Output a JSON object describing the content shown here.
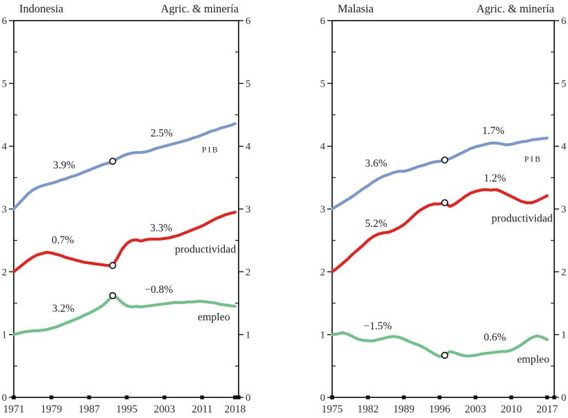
{
  "axis_color": "#111111",
  "marker_style": {
    "fill": "#ffffff",
    "stroke": "#111111"
  },
  "chart_data": [
    {
      "type": "line",
      "country": "Indonesia",
      "sector": "Agric. & minería",
      "ylim": [
        0,
        6
      ],
      "y_ticks": [
        0,
        1,
        2,
        3,
        4,
        5,
        6
      ],
      "y_minor_step": 0.5,
      "x_ticks": [
        1971,
        1979,
        1987,
        1995,
        2003,
        2011,
        2018
      ],
      "x_range": [
        1971,
        2018.75
      ],
      "x_start": 1971,
      "x_step": 1,
      "break_year": 1992,
      "series": [
        {
          "name": "PIB",
          "color": "#7b98cc",
          "marker_value": 3.76,
          "values": [
            3.0,
            3.08,
            3.16,
            3.24,
            3.3,
            3.34,
            3.37,
            3.39,
            3.41,
            3.43,
            3.46,
            3.48,
            3.51,
            3.53,
            3.56,
            3.59,
            3.62,
            3.65,
            3.68,
            3.71,
            3.73,
            3.76,
            3.8,
            3.84,
            3.87,
            3.89,
            3.9,
            3.9,
            3.91,
            3.93,
            3.96,
            3.98,
            4.0,
            4.02,
            4.04,
            4.06,
            4.08,
            4.1,
            4.13,
            4.15,
            4.18,
            4.21,
            4.24,
            4.26,
            4.29,
            4.31,
            4.33,
            4.36
          ]
        },
        {
          "name": "productividad",
          "color": "#e8211d",
          "marker_value": 2.1,
          "values": [
            2.0,
            2.06,
            2.12,
            2.18,
            2.23,
            2.27,
            2.29,
            2.31,
            2.3,
            2.28,
            2.26,
            2.23,
            2.21,
            2.19,
            2.17,
            2.15,
            2.14,
            2.13,
            2.12,
            2.11,
            2.1,
            2.1,
            2.22,
            2.36,
            2.45,
            2.5,
            2.51,
            2.49,
            2.51,
            2.52,
            2.52,
            2.52,
            2.53,
            2.54,
            2.56,
            2.58,
            2.61,
            2.64,
            2.67,
            2.7,
            2.73,
            2.77,
            2.81,
            2.85,
            2.88,
            2.91,
            2.93,
            2.95
          ]
        },
        {
          "name": "empleo",
          "color": "#70c189",
          "marker_value": 1.62,
          "values": [
            1.0,
            1.02,
            1.04,
            1.05,
            1.06,
            1.06,
            1.07,
            1.08,
            1.1,
            1.12,
            1.15,
            1.18,
            1.21,
            1.24,
            1.27,
            1.31,
            1.34,
            1.38,
            1.42,
            1.47,
            1.54,
            1.62,
            1.58,
            1.51,
            1.46,
            1.44,
            1.45,
            1.44,
            1.45,
            1.46,
            1.47,
            1.48,
            1.49,
            1.5,
            1.51,
            1.51,
            1.51,
            1.52,
            1.52,
            1.53,
            1.53,
            1.52,
            1.51,
            1.5,
            1.48,
            1.47,
            1.46,
            1.45
          ]
        }
      ],
      "annotations": [
        {
          "text": "3.9%",
          "year": 1981.7,
          "value": 3.7
        },
        {
          "text": "2.5%",
          "year": 2002.4,
          "value": 4.21
        },
        {
          "text": "PIB",
          "year": 2012.8,
          "value": 3.96,
          "kind": "series-label",
          "small_caps": true
        },
        {
          "text": "0.7%",
          "year": 1981.4,
          "value": 2.51
        },
        {
          "text": "3.3%",
          "year": 2002.3,
          "value": 2.7
        },
        {
          "text": "productividad",
          "year": 2018.2,
          "value": 2.36,
          "anchor": "end",
          "kind": "series-label"
        },
        {
          "text": "3.2%",
          "year": 1981.5,
          "value": 1.42
        },
        {
          "text": "−0.8%",
          "year": 2001.8,
          "value": 1.72
        },
        {
          "text": "empleo",
          "year": 2013.5,
          "value": 1.28,
          "kind": "series-label"
        }
      ]
    },
    {
      "type": "line",
      "country": "Malasia",
      "sector": "Agric. & minería",
      "ylim": [
        0,
        6
      ],
      "y_ticks": [
        0,
        1,
        2,
        3,
        4,
        5,
        6
      ],
      "y_minor_step": 0.5,
      "x_ticks": [
        1975,
        1982,
        1989,
        1996,
        2003,
        2010,
        2017
      ],
      "x_range": [
        1975,
        2018.4
      ],
      "x_start": 1975,
      "x_step": 1,
      "break_year": 1997,
      "series": [
        {
          "name": "PIB",
          "color": "#7b98cc",
          "marker_value": 3.78,
          "values": [
            3.0,
            3.05,
            3.1,
            3.15,
            3.2,
            3.26,
            3.32,
            3.37,
            3.43,
            3.48,
            3.52,
            3.55,
            3.58,
            3.6,
            3.6,
            3.62,
            3.65,
            3.68,
            3.7,
            3.73,
            3.75,
            3.76,
            3.78,
            3.8,
            3.84,
            3.88,
            3.92,
            3.96,
            3.99,
            4.01,
            4.03,
            4.05,
            4.05,
            4.04,
            4.02,
            4.03,
            4.05,
            4.07,
            4.08,
            4.1,
            4.11,
            4.12,
            4.13
          ]
        },
        {
          "name": "productividad",
          "color": "#e8211d",
          "marker_value": 3.1,
          "values": [
            2.0,
            2.06,
            2.13,
            2.2,
            2.28,
            2.35,
            2.42,
            2.5,
            2.56,
            2.6,
            2.62,
            2.63,
            2.66,
            2.7,
            2.75,
            2.82,
            2.9,
            2.97,
            3.02,
            3.06,
            3.08,
            3.08,
            3.1,
            3.04,
            3.08,
            3.14,
            3.2,
            3.25,
            3.28,
            3.3,
            3.31,
            3.3,
            3.31,
            3.28,
            3.24,
            3.2,
            3.16,
            3.12,
            3.1,
            3.1,
            3.13,
            3.17,
            3.21
          ]
        },
        {
          "name": "empleo",
          "color": "#70c189",
          "marker_value": 0.67,
          "values": [
            1.0,
            1.01,
            1.03,
            1.01,
            0.97,
            0.93,
            0.91,
            0.9,
            0.9,
            0.92,
            0.94,
            0.96,
            0.97,
            0.96,
            0.93,
            0.89,
            0.86,
            0.83,
            0.79,
            0.74,
            0.69,
            0.65,
            0.67,
            0.73,
            0.71,
            0.68,
            0.66,
            0.66,
            0.67,
            0.69,
            0.7,
            0.71,
            0.72,
            0.73,
            0.73,
            0.75,
            0.79,
            0.84,
            0.9,
            0.95,
            0.98,
            0.96,
            0.92
          ]
        }
      ],
      "annotations": [
        {
          "text": "3.6%",
          "year": 1983.6,
          "value": 3.73
        },
        {
          "text": "1.7%",
          "year": 2006.5,
          "value": 4.25
        },
        {
          "text": "PIB",
          "year": 2014.3,
          "value": 3.81,
          "kind": "series-label",
          "small_caps": true
        },
        {
          "text": "1.2%",
          "year": 2006.8,
          "value": 3.49
        },
        {
          "text": "productividad",
          "year": 2018.1,
          "value": 2.85,
          "anchor": "end",
          "kind": "series-label"
        },
        {
          "text": "5.2%",
          "year": 1983.6,
          "value": 2.77
        },
        {
          "text": "−1.5%",
          "year": 1983.9,
          "value": 1.14
        },
        {
          "text": "0.6%",
          "year": 2006.8,
          "value": 0.96
        },
        {
          "text": "empleo",
          "year": 2014.3,
          "value": 0.61,
          "kind": "series-label"
        }
      ]
    }
  ]
}
